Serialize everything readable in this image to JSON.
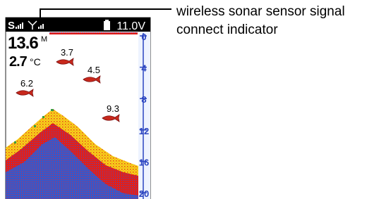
{
  "status_bar": {
    "signal_label": "S",
    "voltage": "11.0V"
  },
  "readout": {
    "depth": "13.6",
    "depth_unit": "M",
    "temperature": "2.7",
    "temperature_unit": "°C"
  },
  "fish": [
    {
      "depth": "3.7"
    },
    {
      "depth": "4.5"
    },
    {
      "depth": "6.2"
    },
    {
      "depth": "9.3"
    }
  ],
  "depth_scale": [
    "0",
    "4",
    "8",
    "12",
    "16",
    "20"
  ],
  "callout": {
    "lines": [
      "wireless sonar sensor signal",
      "connect indicator"
    ]
  }
}
